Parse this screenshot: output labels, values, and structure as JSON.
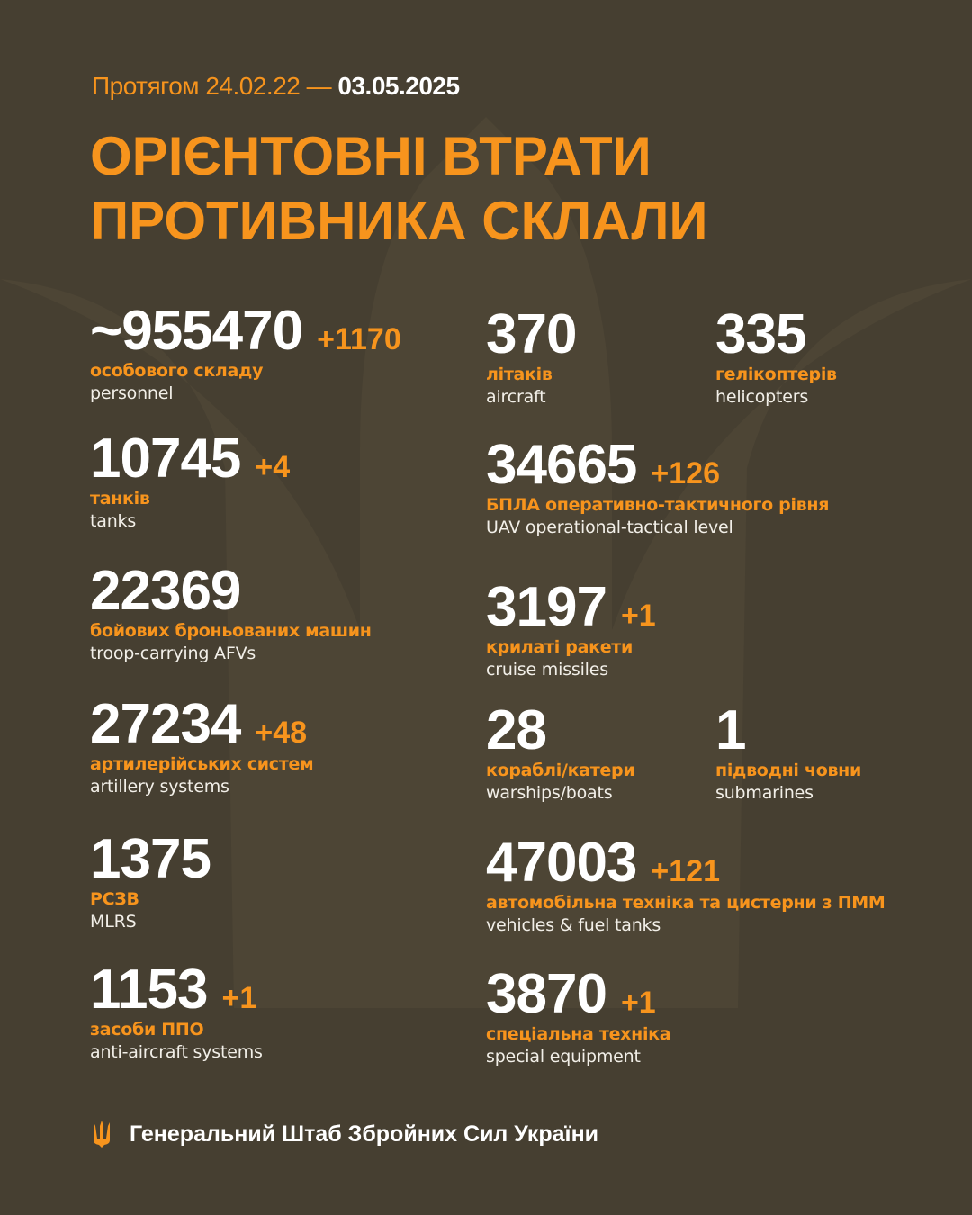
{
  "colors": {
    "background": "#463f31",
    "accent": "#f7941d",
    "text": "#ffffff"
  },
  "header": {
    "period_prefix": "Протягом 24.02.22 —",
    "period_end": "03.05.2025",
    "title_line1": "ОРІЄНТОВНІ ВТРАТИ",
    "title_line2": "ПРОТИВНИКА СКЛАЛИ"
  },
  "stats": [
    {
      "value": "~955470",
      "delta": "+1170",
      "ua": "особового складу",
      "en": "personnel"
    },
    {
      "value": "10745",
      "delta": "+4",
      "ua": "танків",
      "en": "tanks"
    },
    {
      "value": "22369",
      "delta": "",
      "ua": "бойових броньованих машин",
      "en": "troop-carrying AFVs"
    },
    {
      "value": "27234",
      "delta": "+48",
      "ua": "артилерійських систем",
      "en": "artillery systems"
    },
    {
      "value": "1375",
      "delta": "",
      "ua": "РСЗВ",
      "en": "MLRS"
    },
    {
      "value": "1153",
      "delta": "+1",
      "ua": "засоби ППО",
      "en": "anti-aircraft systems"
    },
    {
      "value": "370",
      "delta": "",
      "ua": "літаків",
      "en": "aircraft"
    },
    {
      "value": "335",
      "delta": "",
      "ua": "гелікоптерів",
      "en": "helicopters"
    },
    {
      "value": "34665",
      "delta": "+126",
      "ua": "БПЛА оперативно-тактичного рівня",
      "en": "UAV operational-tactical level"
    },
    {
      "value": "3197",
      "delta": "+1",
      "ua": "крилаті ракети",
      "en": "cruise missiles"
    },
    {
      "value": "28",
      "delta": "",
      "ua": "кораблі/катери",
      "en": "warships/boats"
    },
    {
      "value": "1",
      "delta": "",
      "ua": "підводні човни",
      "en": "submarines"
    },
    {
      "value": "47003",
      "delta": "+121",
      "ua": "автомобільна техніка та цистерни з ПММ",
      "en": "vehicles & fuel tanks"
    },
    {
      "value": "3870",
      "delta": "+1",
      "ua": "спеціальна техніка",
      "en": "special equipment"
    }
  ],
  "footer": {
    "logo_icon": "trident-icon",
    "text": "Генеральний Штаб Збройних Сил України"
  }
}
